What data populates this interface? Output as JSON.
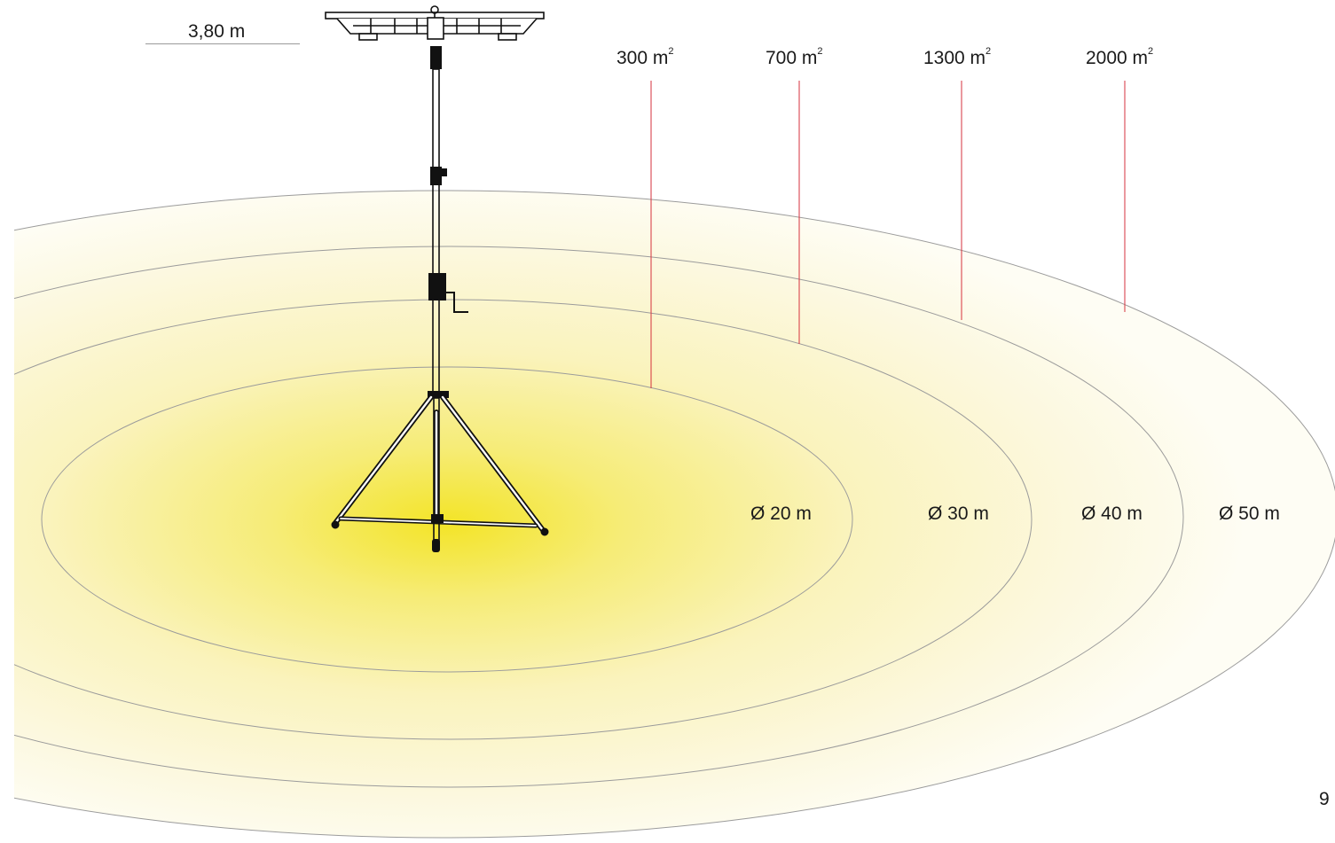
{
  "mounting_height": "3,80 m",
  "coverage_areas": [
    {
      "value": "300 m",
      "unit_exp": "2"
    },
    {
      "value": "700 m",
      "unit_exp": "2"
    },
    {
      "value": "1300 m",
      "unit_exp": "2"
    },
    {
      "value": "2000 m",
      "unit_exp": "2"
    }
  ],
  "diameters": [
    "Ø 20 m",
    "Ø 30 m",
    "Ø 40 m",
    "Ø 50 m"
  ],
  "page_number": "9",
  "colors": {
    "glow_center": "#f3e427",
    "glow_edge": "#fdfbe9",
    "ring_stroke": "#9b9b9b",
    "leader_line": "#d6323c",
    "tripod": "#111111"
  }
}
